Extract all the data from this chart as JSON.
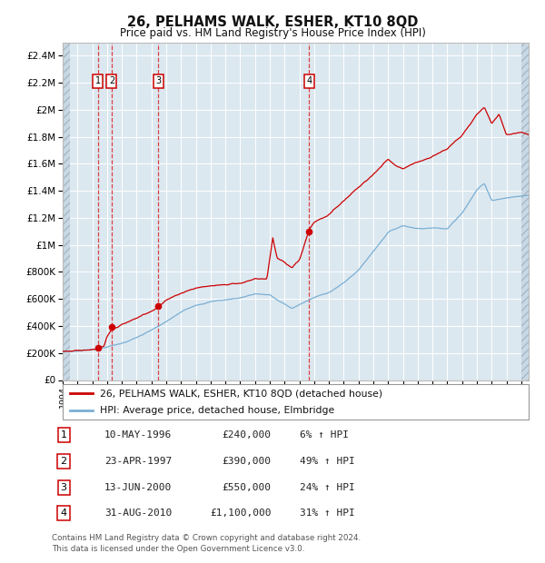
{
  "title": "26, PELHAMS WALK, ESHER, KT10 8QD",
  "subtitle": "Price paid vs. HM Land Registry's House Price Index (HPI)",
  "footer": "Contains HM Land Registry data © Crown copyright and database right 2024.\nThis data is licensed under the Open Government Licence v3.0.",
  "red_label": "26, PELHAMS WALK, ESHER, KT10 8QD (detached house)",
  "blue_label": "HPI: Average price, detached house, Elmbridge",
  "sale_points": [
    {
      "num": 1,
      "date": "10-MAY-1996",
      "price": 240000,
      "pct": "6%",
      "year": 1996.37
    },
    {
      "num": 2,
      "date": "23-APR-1997",
      "price": 390000,
      "pct": "49%",
      "year": 1997.31
    },
    {
      "num": 3,
      "date": "13-JUN-2000",
      "price": 550000,
      "pct": "24%",
      "year": 2000.45
    },
    {
      "num": 4,
      "date": "31-AUG-2010",
      "price": 1100000,
      "pct": "31%",
      "year": 2010.66
    }
  ],
  "ylim": [
    0,
    2500000
  ],
  "yticks": [
    0,
    200000,
    400000,
    600000,
    800000,
    1000000,
    1200000,
    1400000,
    1600000,
    1800000,
    2000000,
    2200000,
    2400000
  ],
  "xlim": [
    1994.0,
    2025.5
  ],
  "bg_color": "#ffffff",
  "plot_bg": "#dce8f0",
  "grid_color": "#ffffff",
  "red_color": "#cc0000",
  "blue_color": "#7aafd4",
  "hatch_color": "#c8d8e4",
  "blue_anchors": [
    [
      1994.0,
      210000
    ],
    [
      1995,
      215000
    ],
    [
      1996,
      228000
    ],
    [
      1997,
      248000
    ],
    [
      1998,
      275000
    ],
    [
      1999,
      318000
    ],
    [
      2000,
      370000
    ],
    [
      2001,
      430000
    ],
    [
      2002,
      500000
    ],
    [
      2003,
      555000
    ],
    [
      2004,
      585000
    ],
    [
      2005,
      598000
    ],
    [
      2006,
      612000
    ],
    [
      2007,
      645000
    ],
    [
      2008.0,
      638000
    ],
    [
      2008.5,
      600000
    ],
    [
      2009.5,
      535000
    ],
    [
      2010,
      565000
    ],
    [
      2011,
      615000
    ],
    [
      2012,
      655000
    ],
    [
      2013,
      725000
    ],
    [
      2014,
      820000
    ],
    [
      2015,
      960000
    ],
    [
      2016,
      1105000
    ],
    [
      2017,
      1155000
    ],
    [
      2018,
      1135000
    ],
    [
      2019,
      1145000
    ],
    [
      2020,
      1135000
    ],
    [
      2021,
      1260000
    ],
    [
      2022,
      1430000
    ],
    [
      2022.5,
      1480000
    ],
    [
      2023,
      1355000
    ],
    [
      2024,
      1375000
    ],
    [
      2025.5,
      1395000
    ]
  ],
  "red_anchors": [
    [
      1994.0,
      210000
    ],
    [
      1995,
      220000
    ],
    [
      1996.0,
      228000
    ],
    [
      1996.37,
      240000
    ],
    [
      1996.8,
      265000
    ],
    [
      1997.0,
      340000
    ],
    [
      1997.31,
      390000
    ],
    [
      1997.6,
      400000
    ],
    [
      1998,
      425000
    ],
    [
      1999,
      465000
    ],
    [
      2000.0,
      525000
    ],
    [
      2000.45,
      550000
    ],
    [
      2001,
      605000
    ],
    [
      2002,
      655000
    ],
    [
      2003,
      695000
    ],
    [
      2004,
      710000
    ],
    [
      2005,
      720000
    ],
    [
      2006,
      735000
    ],
    [
      2007,
      765000
    ],
    [
      2007.8,
      755000
    ],
    [
      2008.2,
      1060000
    ],
    [
      2008.5,
      910000
    ],
    [
      2009.0,
      875000
    ],
    [
      2009.5,
      825000
    ],
    [
      2010.0,
      880000
    ],
    [
      2010.66,
      1100000
    ],
    [
      2011,
      1155000
    ],
    [
      2012,
      1205000
    ],
    [
      2013,
      1310000
    ],
    [
      2014,
      1415000
    ],
    [
      2015,
      1510000
    ],
    [
      2016.0,
      1630000
    ],
    [
      2016.4,
      1590000
    ],
    [
      2017,
      1560000
    ],
    [
      2018,
      1610000
    ],
    [
      2019,
      1660000
    ],
    [
      2020,
      1710000
    ],
    [
      2021,
      1810000
    ],
    [
      2022,
      1960000
    ],
    [
      2022.5,
      2010000
    ],
    [
      2023,
      1890000
    ],
    [
      2023.5,
      1960000
    ],
    [
      2024,
      1810000
    ],
    [
      2025,
      1830000
    ],
    [
      2025.5,
      1810000
    ]
  ]
}
